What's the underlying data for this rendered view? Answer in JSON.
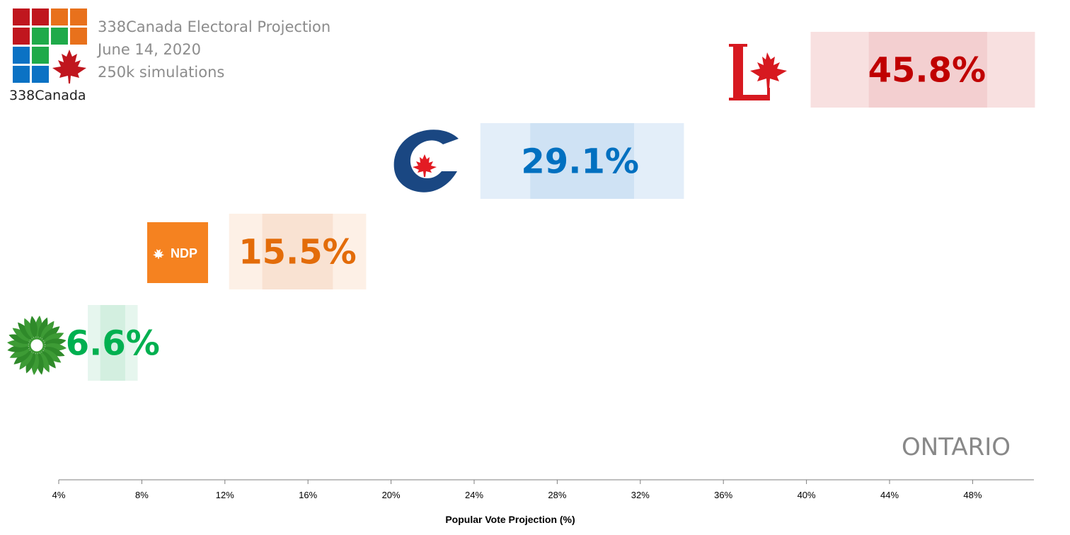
{
  "header": {
    "title": "338Canada Electoral Projection",
    "date": "June 14, 2020",
    "simulations": "250k simulations",
    "brand": "338Canada"
  },
  "region_label": "ONTARIO",
  "chart_data": {
    "type": "bar",
    "title": "338Canada Electoral Projection",
    "xlabel": "Popular Vote Projection (%)",
    "xlim": [
      4,
      50
    ],
    "xticks": [
      "4%",
      "8%",
      "12%",
      "16%",
      "20%",
      "24%",
      "28%",
      "32%",
      "36%",
      "40%",
      "44%",
      "48%"
    ],
    "grid": false,
    "series": [
      {
        "party": "LPC",
        "label": "45.8%",
        "value": 45.8,
        "interval_inner": [
          43.0,
          48.7
        ],
        "interval_outer": [
          40.2,
          51.0
        ],
        "color": "#d71920",
        "text_color": "#c00000",
        "logo": "liberal-logo"
      },
      {
        "party": "CPC",
        "label": "29.1%",
        "value": 29.1,
        "interval_inner": [
          26.7,
          31.7
        ],
        "interval_outer": [
          24.3,
          34.1
        ],
        "color": "#1a4782",
        "text_color": "#0070c0",
        "logo": "conservative-logo"
      },
      {
        "party": "NDP",
        "label": "15.5%",
        "value": 15.5,
        "interval_inner": [
          13.8,
          17.2
        ],
        "interval_outer": [
          12.2,
          18.8
        ],
        "color": "#f37021",
        "text_color": "#e36c09",
        "logo": "ndp-logo"
      },
      {
        "party": "GREEN",
        "label": "6.6%",
        "value": 6.6,
        "interval_inner": [
          6.0,
          7.2
        ],
        "interval_outer": [
          5.4,
          7.8
        ],
        "color": "#3d9b35",
        "text_color": "#00b050",
        "logo": "green-logo"
      }
    ],
    "colors": {
      "LPC": {
        "outer": "#f8e0e0",
        "inner": "#f3cfd0"
      },
      "CPC": {
        "outer": "#e3eef9",
        "inner": "#cfe2f4"
      },
      "NDP": {
        "outer": "#fdf0e6",
        "inner": "#f9e2d2"
      },
      "GREEN": {
        "outer": "#e6f6ee",
        "inner": "#d3efe0"
      }
    }
  },
  "logo_text": {
    "ndp": "NDP"
  }
}
